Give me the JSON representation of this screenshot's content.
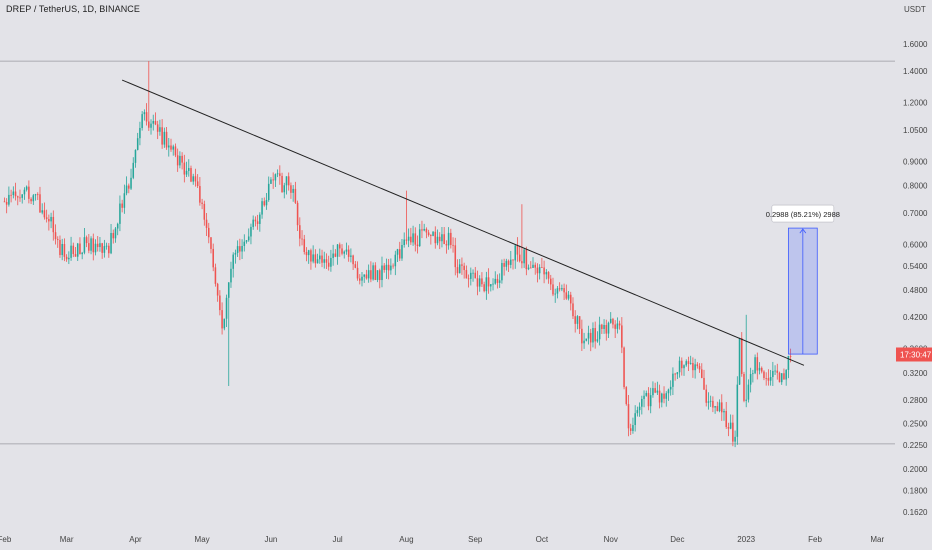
{
  "header": {
    "title": "DREP / TetherUS, 1D, BINANCE"
  },
  "chart_data": {
    "type": "candlestick",
    "title": "DREP / TetherUS, 1D, BINANCE",
    "y_unit": "USDT",
    "y_scale": "log",
    "ylim": [
      0.152,
      1.78
    ],
    "y_ticks": [
      "1.6000",
      "1.4000",
      "1.2000",
      "1.0500",
      "0.9000",
      "0.8000",
      "0.7000",
      "0.6000",
      "0.5400",
      "0.4800",
      "0.4200",
      "0.3600",
      "0.3200",
      "0.2800",
      "0.2500",
      "0.2250",
      "0.2000",
      "0.1800",
      "0.1620"
    ],
    "x_ticks": [
      "Feb",
      "Mar",
      "Apr",
      "May",
      "Jun",
      "Jul",
      "Aug",
      "Sep",
      "Oct",
      "Nov",
      "Dec",
      "2023",
      "Feb",
      "Mar"
    ],
    "x_tick_dates": [
      "2022-02-01",
      "2022-03-01",
      "2022-04-01",
      "2022-05-01",
      "2022-06-01",
      "2022-07-01",
      "2022-08-01",
      "2022-09-01",
      "2022-10-01",
      "2022-11-01",
      "2022-12-01",
      "2023-01-01",
      "2023-02-01",
      "2023-03-01"
    ],
    "xlim": [
      "2022-01-30",
      "2023-03-09"
    ],
    "current_price_label": "17:30:47",
    "current_price": 0.35,
    "colors": {
      "up": "#26a69a",
      "down": "#ef5350",
      "trendline": "#222222",
      "measure": "#3d5afe",
      "price_tag": "#ef5350"
    },
    "horizontal_levels": [
      1.47,
      0.226
    ],
    "trendline": {
      "start": {
        "date": "2022-03-26",
        "price": 1.34
      },
      "end": {
        "date": "2023-01-27",
        "price": 0.332
      }
    },
    "measure": {
      "label": "0.2988 (85.21%) 2988",
      "from": {
        "date": "2023-01-20",
        "price": 0.3507
      },
      "to": {
        "date": "2023-02-02",
        "price": 0.6495
      }
    },
    "price_path": [
      [
        "2022-02-01",
        0.74
      ],
      [
        "2022-02-10",
        0.8
      ],
      [
        "2022-02-20",
        0.7
      ],
      [
        "2022-02-28",
        0.56
      ],
      [
        "2022-03-10",
        0.6
      ],
      [
        "2022-03-20",
        0.6
      ],
      [
        "2022-03-31",
        0.87
      ],
      [
        "2022-04-05",
        1.15
      ],
      [
        "2022-04-10",
        1.05
      ],
      [
        "2022-04-20",
        0.92
      ],
      [
        "2022-04-28",
        0.82
      ],
      [
        "2022-05-05",
        0.6
      ],
      [
        "2022-05-10",
        0.4
      ],
      [
        "2022-05-15",
        0.58
      ],
      [
        "2022-05-25",
        0.66
      ],
      [
        "2022-06-01",
        0.82
      ],
      [
        "2022-06-10",
        0.8
      ],
      [
        "2022-06-15",
        0.6
      ],
      [
        "2022-06-25",
        0.54
      ],
      [
        "2022-07-01",
        0.6
      ],
      [
        "2022-07-10",
        0.52
      ],
      [
        "2022-07-20",
        0.52
      ],
      [
        "2022-07-31",
        0.6
      ],
      [
        "2022-08-10",
        0.63
      ],
      [
        "2022-08-20",
        0.62
      ],
      [
        "2022-08-25",
        0.52
      ],
      [
        "2022-09-05",
        0.49
      ],
      [
        "2022-09-12",
        0.52
      ],
      [
        "2022-09-20",
        0.58
      ],
      [
        "2022-09-28",
        0.53
      ],
      [
        "2022-10-05",
        0.49
      ],
      [
        "2022-10-12",
        0.47
      ],
      [
        "2022-10-20",
        0.37
      ],
      [
        "2022-10-28",
        0.4
      ],
      [
        "2022-11-05",
        0.4
      ],
      [
        "2022-11-09",
        0.24
      ],
      [
        "2022-11-15",
        0.28
      ],
      [
        "2022-11-25",
        0.29
      ],
      [
        "2022-12-01",
        0.33
      ],
      [
        "2022-12-10",
        0.32
      ],
      [
        "2022-12-15",
        0.28
      ],
      [
        "2022-12-22",
        0.26
      ],
      [
        "2022-12-27",
        0.23
      ],
      [
        "2022-12-29",
        0.37
      ],
      [
        "2022-12-31",
        0.28
      ],
      [
        "2023-01-05",
        0.34
      ],
      [
        "2023-01-10",
        0.31
      ],
      [
        "2023-01-18",
        0.31
      ],
      [
        "2023-01-21",
        0.35
      ]
    ],
    "notable_wicks": [
      [
        "2022-04-07",
        1.47,
        "high"
      ],
      [
        "2022-05-13",
        0.3,
        "low"
      ],
      [
        "2022-08-01",
        0.78,
        "high"
      ],
      [
        "2022-09-22",
        0.73,
        "high"
      ],
      [
        "2022-12-28",
        0.225,
        "low"
      ],
      [
        "2023-01-01",
        0.425,
        "high"
      ]
    ]
  }
}
